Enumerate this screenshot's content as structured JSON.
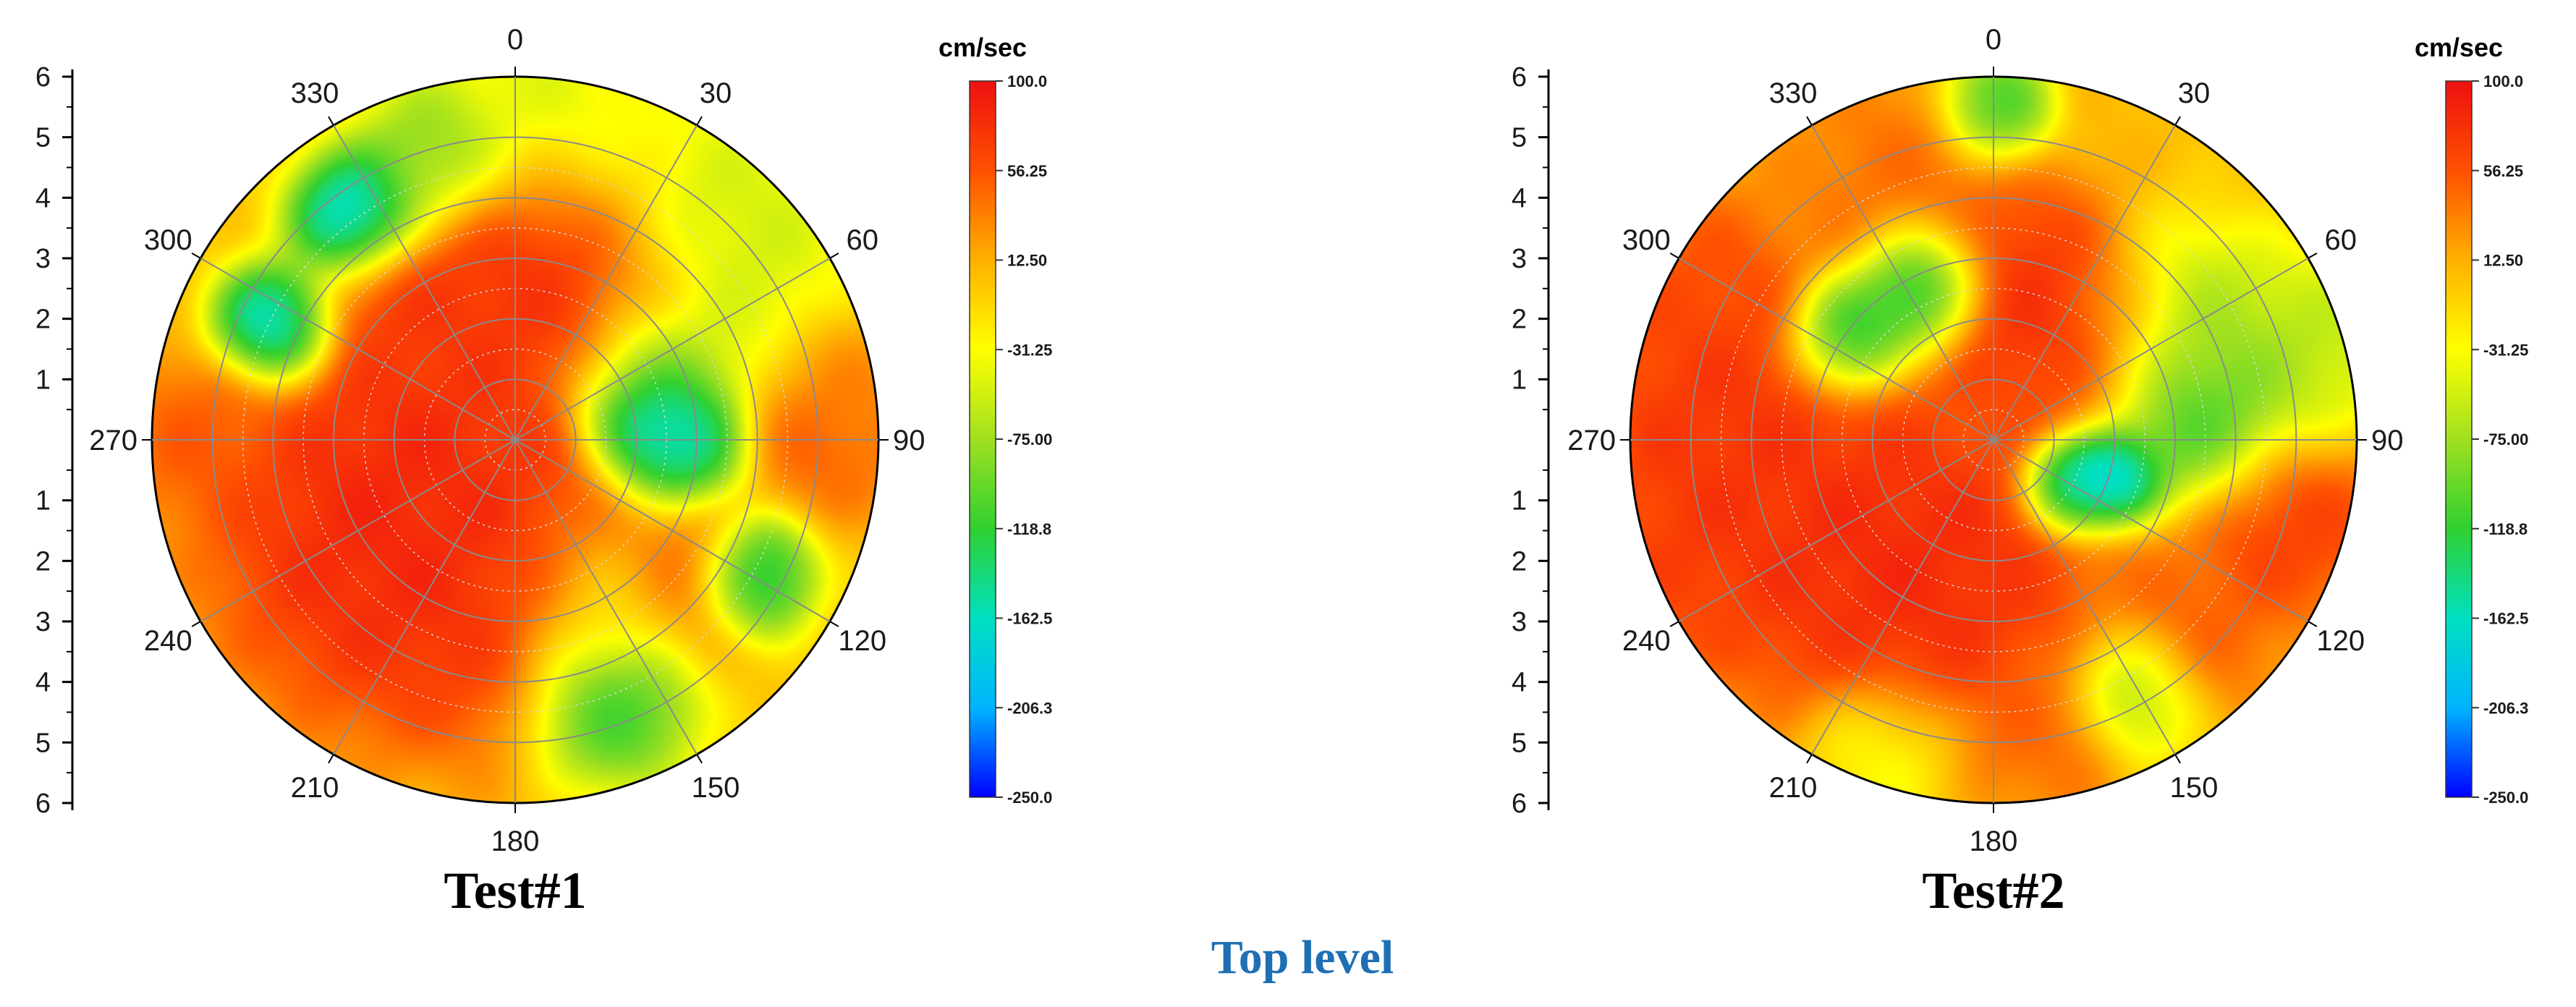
{
  "caption": "Top level",
  "colors": {
    "caption": "#1f6fb4",
    "grid": "#8a8a8a",
    "axis": "#000000",
    "scale_stops": [
      "#0000ff",
      "#00b4ff",
      "#00e0c0",
      "#30d030",
      "#a0e020",
      "#ffff00",
      "#ffb000",
      "#ff5000",
      "#ee1010"
    ]
  },
  "chart_data": [
    {
      "type": "heatmap",
      "subtype": "polar-contour",
      "title": "Test#1",
      "angle_ticks": [
        "0",
        "30",
        "60",
        "90",
        "120",
        "150",
        "180",
        "210",
        "240",
        "270",
        "300",
        "330"
      ],
      "radial_ticks_upper": [
        "6",
        "5",
        "4",
        "3",
        "2",
        "1"
      ],
      "radial_ticks_lower": [
        "1",
        "2",
        "3",
        "4",
        "5",
        "6"
      ],
      "rlim": [
        0,
        6
      ],
      "colorbar": {
        "title": "cm/sec",
        "min": -250.0,
        "max": 100.0,
        "ticks": [
          "100.0",
          "56.25",
          "12.50",
          "-31.25",
          "-75.00",
          "-118.8",
          "-162.5",
          "-206.3",
          "-250.0"
        ]
      },
      "background_value": 0,
      "blobs": [
        {
          "theta": 0,
          "r": 3.0,
          "value": 95,
          "spread": 1.2
        },
        {
          "theta": 30,
          "r": 2.6,
          "value": 85,
          "spread": 1.0
        },
        {
          "theta": 205,
          "r": 2.2,
          "value": 95,
          "spread": 1.6
        },
        {
          "theta": 235,
          "r": 2.8,
          "value": 95,
          "spread": 1.5
        },
        {
          "theta": 260,
          "r": 1.6,
          "value": 90,
          "spread": 1.3
        },
        {
          "theta": 180,
          "r": 1.6,
          "value": 70,
          "spread": 1.2
        },
        {
          "theta": 320,
          "r": 2.8,
          "value": 80,
          "spread": 0.7
        },
        {
          "theta": 270,
          "r": 5.2,
          "value": 60,
          "spread": 0.8
        },
        {
          "theta": 90,
          "r": 5.2,
          "value": 60,
          "spread": 0.7
        },
        {
          "theta": 130,
          "r": 3.4,
          "value": 90,
          "spread": 0.8
        },
        {
          "theta": 80,
          "r": 5.6,
          "value": 30,
          "spread": 0.6
        },
        {
          "theta": 325,
          "r": 4.5,
          "value": -230,
          "spread": 0.6
        },
        {
          "theta": 295,
          "r": 4.4,
          "value": -220,
          "spread": 0.55
        },
        {
          "theta": 345,
          "r": 4.8,
          "value": -130,
          "spread": 0.7
        },
        {
          "theta": 80,
          "r": 2.2,
          "value": -230,
          "spread": 0.65
        },
        {
          "theta": 95,
          "r": 2.6,
          "value": -200,
          "spread": 0.6
        },
        {
          "theta": 60,
          "r": 2.6,
          "value": -120,
          "spread": 0.7
        },
        {
          "theta": 120,
          "r": 4.5,
          "value": -190,
          "spread": 0.55
        },
        {
          "theta": 160,
          "r": 4.6,
          "value": -160,
          "spread": 0.75
        },
        {
          "theta": 45,
          "r": 4.6,
          "value": -70,
          "spread": 1.2
        },
        {
          "theta": 150,
          "r": 3.0,
          "value": -80,
          "spread": 0.9
        },
        {
          "theta": 5,
          "r": 5.4,
          "value": -60,
          "spread": 1.0
        }
      ]
    },
    {
      "type": "heatmap",
      "subtype": "polar-contour",
      "title": "Test#2",
      "angle_ticks": [
        "0",
        "30",
        "60",
        "90",
        "120",
        "150",
        "180",
        "210",
        "240",
        "270",
        "300",
        "330"
      ],
      "radial_ticks_upper": [
        "6",
        "5",
        "4",
        "3",
        "2",
        "1"
      ],
      "radial_ticks_lower": [
        "1",
        "2",
        "3",
        "4",
        "5",
        "6"
      ],
      "rlim": [
        0,
        6
      ],
      "colorbar": {
        "title": "cm/sec",
        "min": -250.0,
        "max": 100.0,
        "ticks": [
          "100.0",
          "56.25",
          "12.50",
          "-31.25",
          "-75.00",
          "-118.8",
          "-162.5",
          "-206.3",
          "-250.0"
        ]
      },
      "background_value": 5,
      "blobs": [
        {
          "theta": 10,
          "r": 2.5,
          "value": 95,
          "spread": 1.0
        },
        {
          "theta": 40,
          "r": 2.2,
          "value": 90,
          "spread": 0.9
        },
        {
          "theta": 205,
          "r": 2.4,
          "value": 95,
          "spread": 1.5
        },
        {
          "theta": 235,
          "r": 3.0,
          "value": 90,
          "spread": 1.4
        },
        {
          "theta": 275,
          "r": 4.6,
          "value": 90,
          "spread": 1.2
        },
        {
          "theta": 295,
          "r": 5.2,
          "value": 70,
          "spread": 1.0
        },
        {
          "theta": 250,
          "r": 5.3,
          "value": 80,
          "spread": 1.0
        },
        {
          "theta": 105,
          "r": 5.0,
          "value": 85,
          "spread": 0.9
        },
        {
          "theta": 135,
          "r": 4.6,
          "value": 60,
          "spread": 0.8
        },
        {
          "theta": 170,
          "r": 5.0,
          "value": 50,
          "spread": 0.7
        },
        {
          "theta": 340,
          "r": 4.6,
          "value": 50,
          "spread": 1.0
        },
        {
          "theta": 335,
          "r": 2.8,
          "value": -220,
          "spread": 0.6
        },
        {
          "theta": 305,
          "r": 3.0,
          "value": -180,
          "spread": 0.55
        },
        {
          "theta": 120,
          "r": 1.5,
          "value": -230,
          "spread": 0.45
        },
        {
          "theta": 105,
          "r": 2.1,
          "value": -230,
          "spread": 0.45
        },
        {
          "theta": 85,
          "r": 3.5,
          "value": -150,
          "spread": 0.8
        },
        {
          "theta": 0,
          "r": 5.5,
          "value": -150,
          "spread": 0.5
        },
        {
          "theta": 60,
          "r": 3.5,
          "value": -90,
          "spread": 1.0
        },
        {
          "theta": 150,
          "r": 4.8,
          "value": -110,
          "spread": 0.6
        },
        {
          "theta": 75,
          "r": 5.2,
          "value": -80,
          "spread": 0.9
        },
        {
          "theta": 200,
          "r": 5.5,
          "value": -50,
          "spread": 0.7
        }
      ]
    }
  ]
}
